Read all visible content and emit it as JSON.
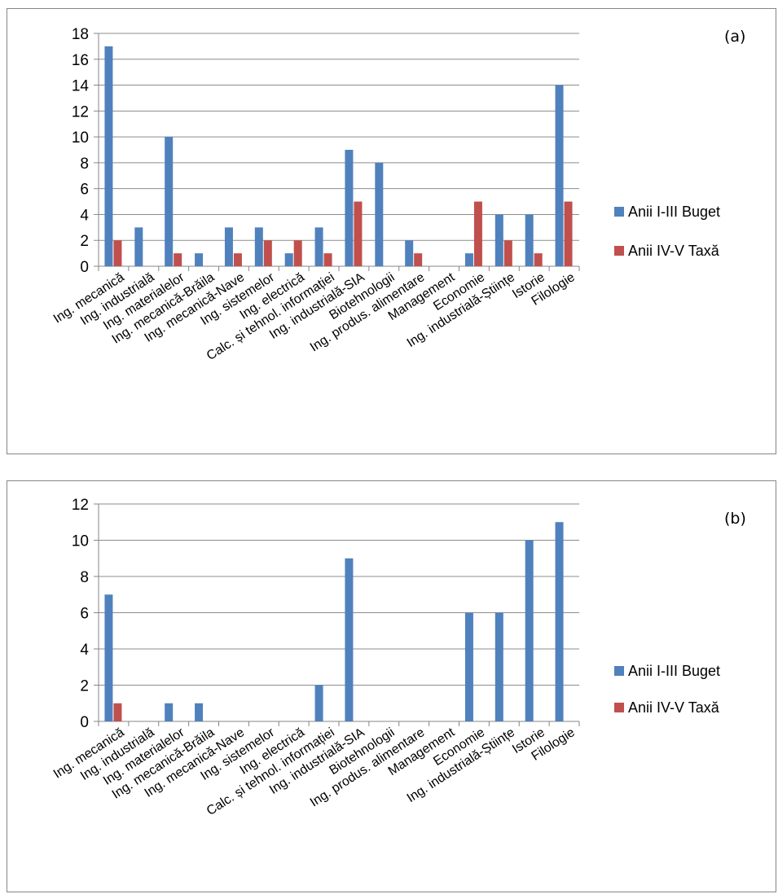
{
  "colors": {
    "buget": "#4f81bd",
    "taxa": "#c0504d",
    "grid": "#8c8c8c",
    "axis": "#868686"
  },
  "legend_placement": "right",
  "chart_data": [
    {
      "type": "bar",
      "panel_label": "(a)",
      "ylim": [
        0,
        18
      ],
      "yticks": [
        0,
        2,
        4,
        6,
        8,
        10,
        12,
        14,
        16,
        18
      ],
      "grid": true,
      "categories": [
        "Ing. mecanică",
        "Ing. industrială",
        "Ing. materialelor",
        "Ing. mecanică-Brăila",
        "Ing. mecanică-Nave",
        "Ing. sistemelor",
        "Ing. electrică",
        "Calc. și tehnol. informației",
        "Ing. industrială-SIA",
        "Biotehnologii",
        "Ing. produs. alimentare",
        "Management",
        "Economie",
        "Ing. industrială-Științe",
        "Istorie",
        "Filologie"
      ],
      "series": [
        {
          "name": "Anii I-III Buget",
          "values": [
            17,
            3,
            10,
            1,
            3,
            3,
            1,
            3,
            9,
            8,
            2,
            0,
            1,
            4,
            4,
            14
          ]
        },
        {
          "name": "Anii IV-V Taxă",
          "values": [
            2,
            0,
            1,
            0,
            1,
            2,
            2,
            1,
            5,
            0,
            1,
            0,
            5,
            2,
            1,
            5
          ]
        }
      ]
    },
    {
      "type": "bar",
      "panel_label": "(b)",
      "ylim": [
        0,
        12
      ],
      "yticks": [
        0,
        2,
        4,
        6,
        8,
        10,
        12
      ],
      "grid": true,
      "categories": [
        "Ing. mecanică",
        "Ing. industrială",
        "Ing. materialelor",
        "Ing. mecanică-Brăila",
        "Ing. mecanică-Nave",
        "Ing. sistemelor",
        "Ing. electrică",
        "Calc. și tehnol. informației",
        "Ing. industrială-SIA",
        "Biotehnologii",
        "Ing. produs. alimentare",
        "Management",
        "Economie",
        "Ing. industrială-Științe",
        "Istorie",
        "Filologie"
      ],
      "series": [
        {
          "name": "Anii I-III Buget",
          "values": [
            7,
            0,
            1,
            1,
            0,
            0,
            0,
            2,
            9,
            0,
            0,
            0,
            6,
            6,
            10,
            11
          ]
        },
        {
          "name": "Anii IV-V Taxă",
          "values": [
            1,
            0,
            0,
            0,
            0,
            0,
            0,
            0,
            0,
            0,
            0,
            0,
            0,
            0,
            0,
            0
          ]
        }
      ]
    }
  ]
}
